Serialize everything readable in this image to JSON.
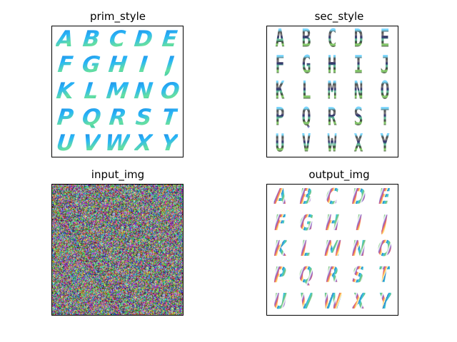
{
  "panels": {
    "prim_style": {
      "title": "prim_style"
    },
    "sec_style": {
      "title": "sec_style"
    },
    "input_img": {
      "title": "input_img"
    },
    "output_img": {
      "title": "output_img"
    }
  },
  "letters": [
    "A",
    "B",
    "C",
    "D",
    "E",
    "F",
    "G",
    "H",
    "I",
    "J",
    "K",
    "L",
    "M",
    "N",
    "O",
    "P",
    "Q",
    "R",
    "S",
    "T",
    "U",
    "V",
    "W",
    "X",
    "Y"
  ],
  "colors": {
    "background": "#ffffff",
    "frame": "#000000",
    "prim_primary": "#1e88e5",
    "prim_secondary": "#66e0a0"
  }
}
